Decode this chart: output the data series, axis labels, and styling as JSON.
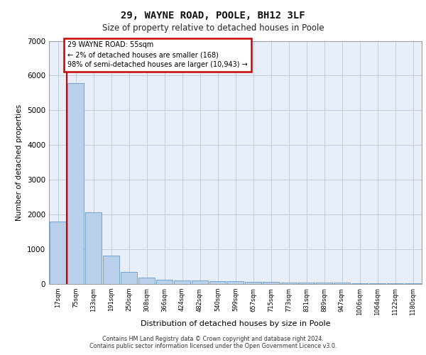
{
  "title_line1": "29, WAYNE ROAD, POOLE, BH12 3LF",
  "title_line2": "Size of property relative to detached houses in Poole",
  "xlabel": "Distribution of detached houses by size in Poole",
  "ylabel": "Number of detached properties",
  "bar_labels": [
    "17sqm",
    "75sqm",
    "133sqm",
    "191sqm",
    "250sqm",
    "308sqm",
    "366sqm",
    "424sqm",
    "482sqm",
    "540sqm",
    "599sqm",
    "657sqm",
    "715sqm",
    "773sqm",
    "831sqm",
    "889sqm",
    "947sqm",
    "1006sqm",
    "1064sqm",
    "1122sqm",
    "1180sqm"
  ],
  "bar_values": [
    1800,
    5780,
    2060,
    820,
    340,
    185,
    120,
    105,
    100,
    90,
    80,
    60,
    55,
    50,
    45,
    40,
    35,
    30,
    25,
    20,
    15
  ],
  "bar_color": "#b8d0ea",
  "bar_edge_color": "#6699cc",
  "annotation_text_line1": "29 WAYNE ROAD: 55sqm",
  "annotation_text_line2": "← 2% of detached houses are smaller (168)",
  "annotation_text_line3": "98% of semi-detached houses are larger (10,943) →",
  "annotation_box_color": "#ffffff",
  "annotation_box_edge": "#cc0000",
  "vline_color": "#cc0000",
  "ylim": [
    0,
    7000
  ],
  "yticks": [
    0,
    1000,
    2000,
    3000,
    4000,
    5000,
    6000,
    7000
  ],
  "bg_color": "#e8eef8",
  "footer_line1": "Contains HM Land Registry data © Crown copyright and database right 2024.",
  "footer_line2": "Contains public sector information licensed under the Open Government Licence v3.0."
}
